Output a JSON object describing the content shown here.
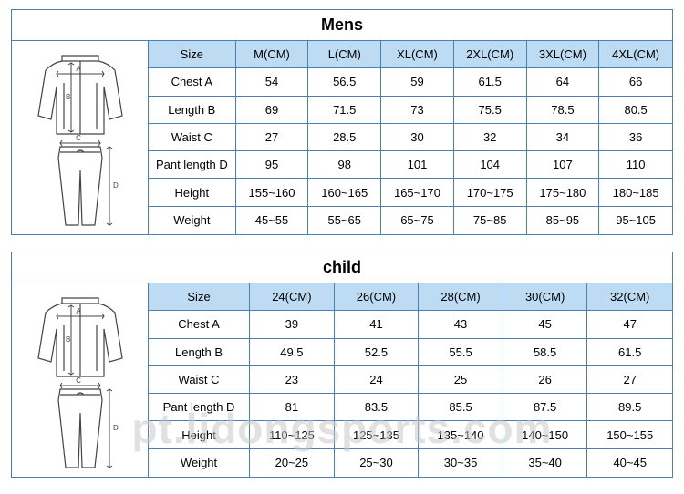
{
  "watermark": "pt.lidongsports.com",
  "mens": {
    "title": "Mens",
    "columns": [
      "Size",
      "M(CM)",
      "L(CM)",
      "XL(CM)",
      "2XL(CM)",
      "3XL(CM)",
      "4XL(CM)"
    ],
    "rows": [
      {
        "label": "Chest A",
        "values": [
          "54",
          "56.5",
          "59",
          "61.5",
          "64",
          "66"
        ]
      },
      {
        "label": "Length B",
        "values": [
          "69",
          "71.5",
          "73",
          "75.5",
          "78.5",
          "80.5"
        ]
      },
      {
        "label": "Waist C",
        "values": [
          "27",
          "28.5",
          "30",
          "32",
          "34",
          "36"
        ]
      },
      {
        "label": "Pant length D",
        "values": [
          "95",
          "98",
          "101",
          "104",
          "107",
          "110"
        ]
      },
      {
        "label": "Height",
        "values": [
          "155~160",
          "160~165",
          "165~170",
          "170~175",
          "175~180",
          "180~185"
        ]
      },
      {
        "label": "Weight",
        "values": [
          "45~55",
          "55~65",
          "65~75",
          "75~85",
          "85~95",
          "95~105"
        ]
      }
    ],
    "header_bg": "#bddcf4",
    "border_color": "#4a7fb0"
  },
  "child": {
    "title": "child",
    "columns": [
      "Size",
      "24(CM)",
      "26(CM)",
      "28(CM)",
      "30(CM)",
      "32(CM)"
    ],
    "rows": [
      {
        "label": "Chest A",
        "values": [
          "39",
          "41",
          "43",
          "45",
          "47"
        ]
      },
      {
        "label": "Length B",
        "values": [
          "49.5",
          "52.5",
          "55.5",
          "58.5",
          "61.5"
        ]
      },
      {
        "label": "Waist C",
        "values": [
          "23",
          "24",
          "25",
          "26",
          "27"
        ]
      },
      {
        "label": "Pant length D",
        "values": [
          "81",
          "83.5",
          "85.5",
          "87.5",
          "89.5"
        ]
      },
      {
        "label": "Height",
        "values": [
          "110~125",
          "125~135",
          "135~140",
          "140~150",
          "150~155"
        ]
      },
      {
        "label": "Weight",
        "values": [
          "20~25",
          "25~30",
          "30~35",
          "35~40",
          "40~45"
        ]
      }
    ],
    "header_bg": "#bddcf4",
    "border_color": "#4a7fb0"
  }
}
